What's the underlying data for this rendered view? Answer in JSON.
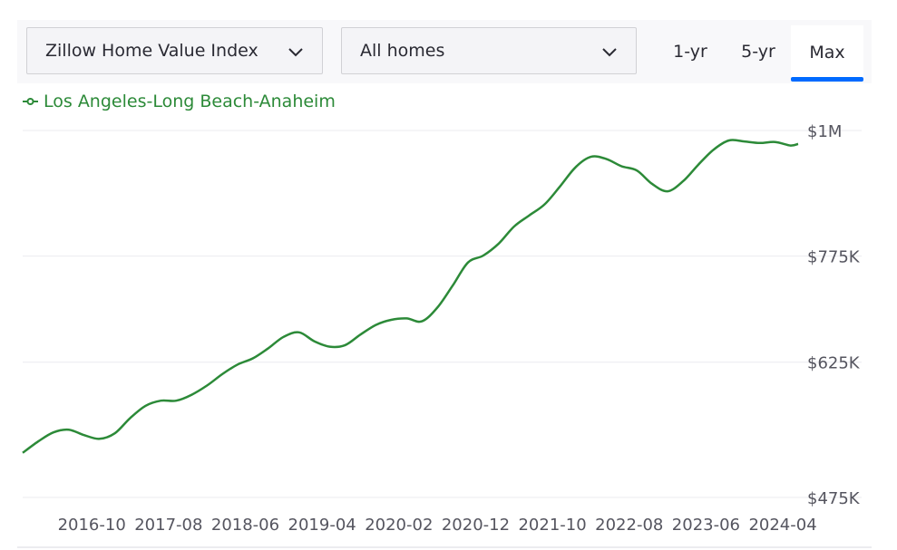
{
  "toolbar": {
    "metric_select": {
      "value": "Zillow Home Value Index"
    },
    "home_type_select": {
      "value": "All homes"
    },
    "ranges": [
      {
        "label": "1-yr",
        "selected": false
      },
      {
        "label": "5-yr",
        "selected": false
      },
      {
        "label": "Max",
        "selected": true
      }
    ],
    "accent_color": "#006aff"
  },
  "chart_data": {
    "type": "line",
    "title": "",
    "xlabel": "",
    "ylabel": "",
    "x_ticks": [
      "2016-10",
      "2017-08",
      "2018-06",
      "2019-04",
      "2020-02",
      "2020-12",
      "2021-10",
      "2022-08",
      "2023-06",
      "2024-04"
    ],
    "y_ticks": [
      {
        "value": 475000,
        "label": "$475K"
      },
      {
        "value": 625000,
        "label": "$625K"
      },
      {
        "value": 775000,
        "label": "$775K"
      },
      {
        "value": 1000000,
        "label": "$1M"
      }
    ],
    "y_scale": "log",
    "ylim": [
      475000,
      1000000
    ],
    "xlim": [
      "2016-01",
      "2024-07"
    ],
    "grid": true,
    "legend_position": "top-left",
    "series": [
      {
        "name": "Los Angeles-Long Beach-Anaheim",
        "color": "#2c8a38",
        "x": [
          "2016-01",
          "2016-03",
          "2016-05",
          "2016-07",
          "2016-09",
          "2016-11",
          "2017-01",
          "2017-03",
          "2017-05",
          "2017-07",
          "2017-09",
          "2017-11",
          "2018-01",
          "2018-03",
          "2018-05",
          "2018-07",
          "2018-09",
          "2018-11",
          "2019-01",
          "2019-03",
          "2019-05",
          "2019-07",
          "2019-09",
          "2019-11",
          "2020-01",
          "2020-03",
          "2020-05",
          "2020-07",
          "2020-09",
          "2020-11",
          "2021-01",
          "2021-03",
          "2021-05",
          "2021-07",
          "2021-09",
          "2021-11",
          "2022-01",
          "2022-03",
          "2022-05",
          "2022-07",
          "2022-09",
          "2022-11",
          "2023-01",
          "2023-03",
          "2023-05",
          "2023-07",
          "2023-09",
          "2023-11",
          "2024-01",
          "2024-03",
          "2024-05",
          "2024-06"
        ],
        "values": [
          520000,
          532000,
          542000,
          545000,
          539000,
          535000,
          541000,
          558000,
          572000,
          578000,
          578000,
          585000,
          596000,
          610000,
          622000,
          630000,
          643000,
          658000,
          664000,
          652000,
          645000,
          647000,
          661000,
          674000,
          681000,
          683000,
          679000,
          698000,
          730000,
          765000,
          776000,
          795000,
          823000,
          842000,
          861000,
          893000,
          928000,
          948000,
          944000,
          930000,
          922000,
          897000,
          884000,
          902000,
          933000,
          962000,
          980000,
          978000,
          975000,
          977000,
          970000,
          973000
        ]
      }
    ]
  }
}
